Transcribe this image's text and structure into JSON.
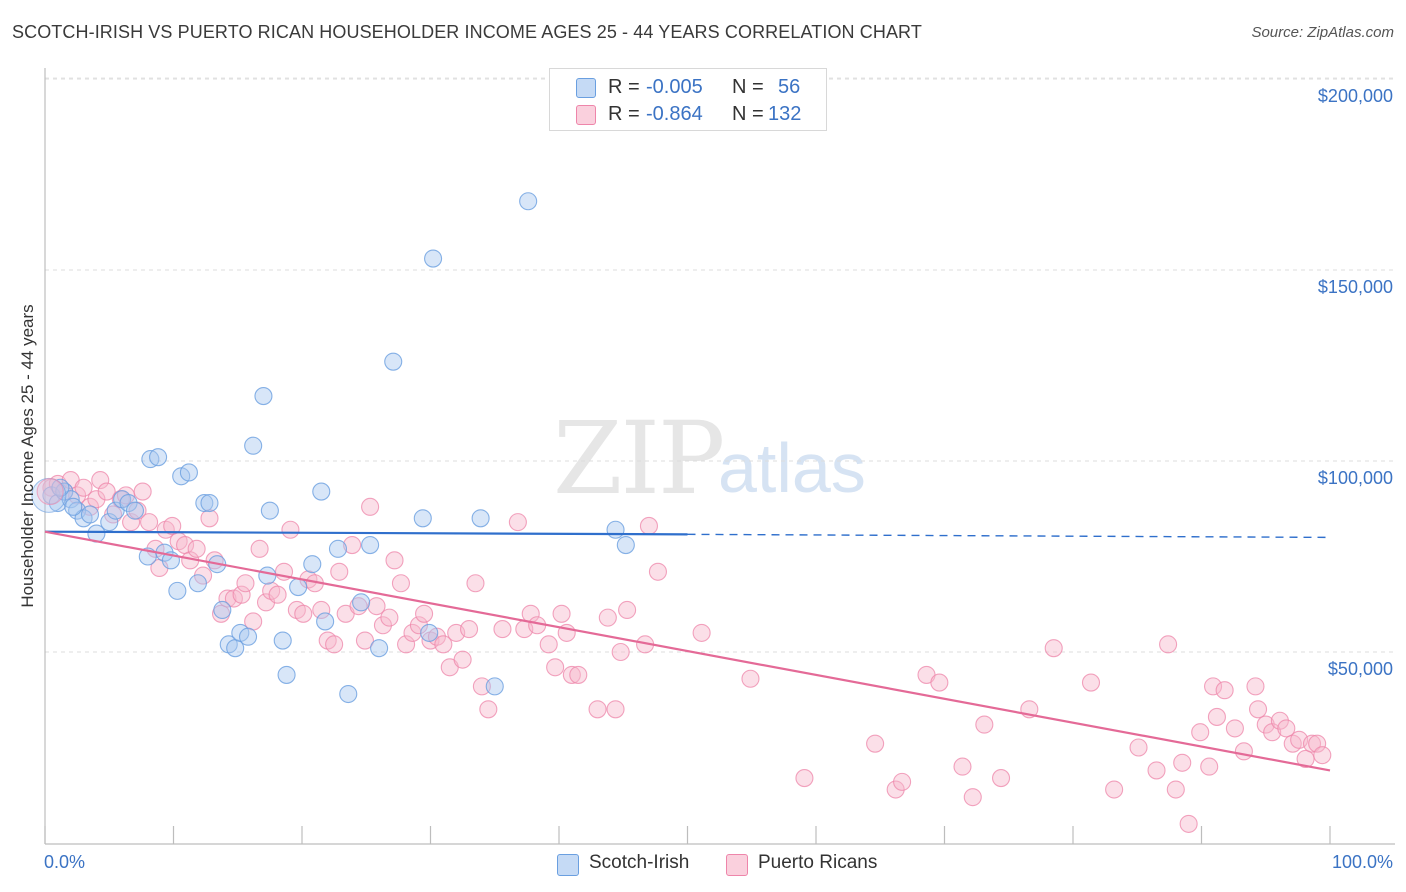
{
  "title": "SCOTCH-IRISH VS PUERTO RICAN HOUSEHOLDER INCOME AGES 25 - 44 YEARS CORRELATION CHART",
  "source": "Source: ZipAtlas.com",
  "watermark": {
    "zip": "ZIP",
    "atlas": "atlas"
  },
  "legend": {
    "rows": [
      {
        "r_label": "R =",
        "r_value": "-0.005",
        "n_label": "N =",
        "n_value": "56",
        "color": "#a8c8f0"
      },
      {
        "r_label": "R =",
        "r_value": "-0.864",
        "n_label": "N =",
        "n_value": "132",
        "color": "#f6b8cc"
      }
    ]
  },
  "colors": {
    "blue": "#6a9fe0",
    "blue_fill": "#a8c8f0",
    "pink": "#ee85aa",
    "pink_fill": "#f6b8cc",
    "blue_line": "#2f6fcc",
    "pink_line": "#e46a97",
    "tick_label": "#3b73c4"
  },
  "chart_data": {
    "type": "scatter",
    "title": "SCOTCH-IRISH VS PUERTO RICAN HOUSEHOLDER INCOME AGES 25 - 44 YEARS CORRELATION CHART",
    "xlabel": "",
    "ylabel": "Householder Income Ages 25 - 44 years",
    "xlim": [
      0,
      100
    ],
    "ylim": [
      5000,
      210000
    ],
    "x_tick_labels": [
      "0.0%",
      "100.0%"
    ],
    "y_ticks": [
      50000,
      100000,
      150000,
      200000
    ],
    "y_tick_labels": [
      "$50,000",
      "$100,000",
      "$150,000",
      "$200,000"
    ],
    "grid": true,
    "legend_position": "bottom",
    "series": [
      {
        "name": "Scotch-Irish",
        "r": -0.005,
        "n": 56,
        "trend": {
          "x": [
            0,
            50,
            100
          ],
          "y": [
            81500,
            80800,
            80000
          ],
          "solid_until": 50
        },
        "points": [
          [
            0.5,
            91000
          ],
          [
            1.0,
            89000
          ],
          [
            1.5,
            92000
          ],
          [
            2.0,
            90000
          ],
          [
            2.5,
            87000
          ],
          [
            3.0,
            85000
          ],
          [
            3.5,
            86000
          ],
          [
            4.0,
            81000
          ],
          [
            5.0,
            84000
          ],
          [
            5.5,
            87000
          ],
          [
            6.0,
            90000
          ],
          [
            6.5,
            89000
          ],
          [
            7.0,
            87000
          ],
          [
            8.0,
            75000
          ],
          [
            8.2,
            100500
          ],
          [
            8.8,
            101000
          ],
          [
            9.3,
            76000
          ],
          [
            9.8,
            74000
          ],
          [
            10.3,
            66000
          ],
          [
            10.6,
            96000
          ],
          [
            11.2,
            97000
          ],
          [
            11.9,
            68000
          ],
          [
            12.4,
            89000
          ],
          [
            12.8,
            89000
          ],
          [
            13.4,
            73000
          ],
          [
            13.8,
            61000
          ],
          [
            14.3,
            52000
          ],
          [
            14.8,
            51000
          ],
          [
            15.2,
            55000
          ],
          [
            15.8,
            54000
          ],
          [
            16.2,
            104000
          ],
          [
            17.0,
            117000
          ],
          [
            17.3,
            70000
          ],
          [
            17.5,
            87000
          ],
          [
            18.5,
            53000
          ],
          [
            18.8,
            44000
          ],
          [
            19.7,
            67000
          ],
          [
            20.8,
            73000
          ],
          [
            21.5,
            92000
          ],
          [
            21.8,
            58000
          ],
          [
            22.8,
            77000
          ],
          [
            23.6,
            39000
          ],
          [
            24.6,
            63000
          ],
          [
            25.3,
            78000
          ],
          [
            26.0,
            51000
          ],
          [
            27.1,
            126000
          ],
          [
            29.4,
            85000
          ],
          [
            29.9,
            55000
          ],
          [
            30.2,
            153000
          ],
          [
            33.9,
            85000
          ],
          [
            35.0,
            41000
          ],
          [
            37.6,
            168000
          ],
          [
            44.4,
            82000
          ],
          [
            45.2,
            78000
          ],
          [
            1.2,
            93000
          ],
          [
            2.2,
            88000
          ]
        ]
      },
      {
        "name": "Puerto Ricans",
        "r": -0.864,
        "n": 132,
        "trend": {
          "x": [
            0,
            100
          ],
          "y": [
            81500,
            19000
          ]
        },
        "points": [
          [
            0.5,
            93000
          ],
          [
            1.0,
            94000
          ],
          [
            1.5,
            92000
          ],
          [
            2.0,
            95000
          ],
          [
            2.5,
            91000
          ],
          [
            3.0,
            93000
          ],
          [
            3.5,
            88000
          ],
          [
            4.0,
            90000
          ],
          [
            4.3,
            95000
          ],
          [
            4.8,
            92000
          ],
          [
            5.3,
            86000
          ],
          [
            5.9,
            90000
          ],
          [
            6.3,
            91000
          ],
          [
            6.7,
            84000
          ],
          [
            7.2,
            87000
          ],
          [
            7.6,
            92000
          ],
          [
            8.1,
            84000
          ],
          [
            8.6,
            77000
          ],
          [
            8.9,
            72000
          ],
          [
            9.4,
            82000
          ],
          [
            9.9,
            83000
          ],
          [
            10.4,
            79000
          ],
          [
            10.9,
            78000
          ],
          [
            11.3,
            74000
          ],
          [
            11.8,
            77000
          ],
          [
            12.3,
            70000
          ],
          [
            12.8,
            85000
          ],
          [
            13.2,
            74000
          ],
          [
            13.7,
            60000
          ],
          [
            14.2,
            64000
          ],
          [
            14.7,
            64000
          ],
          [
            15.3,
            65000
          ],
          [
            15.6,
            68000
          ],
          [
            16.2,
            58000
          ],
          [
            16.7,
            77000
          ],
          [
            17.2,
            63000
          ],
          [
            17.6,
            66000
          ],
          [
            18.1,
            65000
          ],
          [
            18.6,
            71000
          ],
          [
            19.1,
            82000
          ],
          [
            19.6,
            61000
          ],
          [
            20.1,
            60000
          ],
          [
            20.5,
            69000
          ],
          [
            21.0,
            68000
          ],
          [
            21.5,
            61000
          ],
          [
            22.0,
            53000
          ],
          [
            22.5,
            52000
          ],
          [
            22.9,
            71000
          ],
          [
            23.4,
            60000
          ],
          [
            23.9,
            78000
          ],
          [
            24.4,
            62000
          ],
          [
            24.9,
            53000
          ],
          [
            25.3,
            88000
          ],
          [
            25.8,
            62000
          ],
          [
            26.3,
            57000
          ],
          [
            26.8,
            59000
          ],
          [
            27.2,
            74000
          ],
          [
            27.7,
            68000
          ],
          [
            28.1,
            52000
          ],
          [
            28.6,
            55000
          ],
          [
            29.1,
            57000
          ],
          [
            29.5,
            60000
          ],
          [
            30.0,
            53000
          ],
          [
            30.5,
            54000
          ],
          [
            31.0,
            52000
          ],
          [
            31.5,
            46000
          ],
          [
            32.0,
            55000
          ],
          [
            32.5,
            48000
          ],
          [
            33.0,
            56000
          ],
          [
            33.5,
            68000
          ],
          [
            34.0,
            41000
          ],
          [
            34.5,
            35000
          ],
          [
            35.6,
            56000
          ],
          [
            36.8,
            84000
          ],
          [
            37.3,
            56000
          ],
          [
            37.8,
            60000
          ],
          [
            38.3,
            57000
          ],
          [
            39.2,
            52000
          ],
          [
            39.7,
            46000
          ],
          [
            40.2,
            60000
          ],
          [
            40.6,
            55000
          ],
          [
            41.0,
            44000
          ],
          [
            41.5,
            44000
          ],
          [
            43.0,
            35000
          ],
          [
            43.8,
            59000
          ],
          [
            44.4,
            35000
          ],
          [
            44.8,
            50000
          ],
          [
            45.3,
            61000
          ],
          [
            46.7,
            52000
          ],
          [
            47.0,
            83000
          ],
          [
            47.7,
            71000
          ],
          [
            51.1,
            55000
          ],
          [
            54.9,
            43000
          ],
          [
            59.1,
            17000
          ],
          [
            64.6,
            26000
          ],
          [
            66.2,
            14000
          ],
          [
            66.7,
            16000
          ],
          [
            68.6,
            44000
          ],
          [
            69.6,
            42000
          ],
          [
            71.4,
            20000
          ],
          [
            72.2,
            12000
          ],
          [
            73.1,
            31000
          ],
          [
            74.4,
            17000
          ],
          [
            76.6,
            35000
          ],
          [
            78.5,
            51000
          ],
          [
            81.4,
            42000
          ],
          [
            83.2,
            14000
          ],
          [
            85.1,
            25000
          ],
          [
            86.5,
            19000
          ],
          [
            87.4,
            52000
          ],
          [
            88.0,
            14000
          ],
          [
            88.5,
            21000
          ],
          [
            89.0,
            5000
          ],
          [
            89.9,
            29000
          ],
          [
            90.6,
            20000
          ],
          [
            90.9,
            41000
          ],
          [
            91.2,
            33000
          ],
          [
            91.8,
            40000
          ],
          [
            92.6,
            30000
          ],
          [
            93.3,
            24000
          ],
          [
            94.2,
            41000
          ],
          [
            94.4,
            35000
          ],
          [
            95.0,
            31000
          ],
          [
            95.5,
            29000
          ],
          [
            96.1,
            32000
          ],
          [
            96.6,
            30000
          ],
          [
            97.1,
            26000
          ],
          [
            97.6,
            27000
          ],
          [
            98.1,
            22000
          ],
          [
            98.6,
            26000
          ],
          [
            99.0,
            26000
          ],
          [
            99.4,
            23000
          ]
        ]
      }
    ]
  },
  "bottom_legend": {
    "items": [
      {
        "label": "Scotch-Irish",
        "color": "#a8c8f0"
      },
      {
        "label": "Puerto Ricans",
        "color": "#f6b8cc"
      }
    ]
  }
}
